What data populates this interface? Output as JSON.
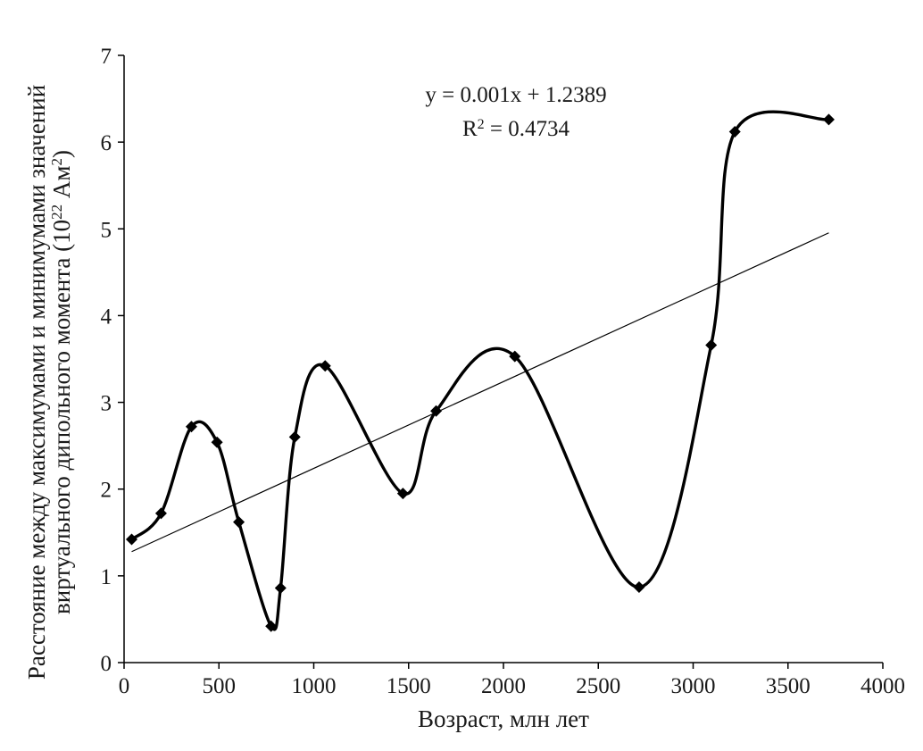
{
  "chart_data": {
    "type": "line",
    "title": "",
    "xlabel": "Возраст, млн лет",
    "ylabel": {
      "line1": "Расстояние между максимумами и минимумами значений",
      "line2_main": "виртуального дипольного момента (10",
      "line2_exp1": "22",
      "line2_mid": " Ам",
      "line2_exp2": "2",
      "line2_end": ")"
    },
    "xlim": [
      0,
      4000
    ],
    "ylim": [
      0,
      7
    ],
    "x_ticks": [
      0,
      500,
      1000,
      1500,
      2000,
      2500,
      3000,
      3500,
      4000
    ],
    "y_ticks": [
      0,
      1,
      2,
      3,
      4,
      5,
      6,
      7
    ],
    "grid": false,
    "legend": "none",
    "series": [
      {
        "kind": "smoothed-line-with-markers",
        "marker": "diamond",
        "color": "#000000",
        "x": [
          40,
          195,
          355,
          490,
          605,
          775,
          825,
          900,
          1060,
          1470,
          1645,
          2060,
          2715,
          3095,
          3220,
          3715
        ],
        "y": [
          1.42,
          1.72,
          2.72,
          2.54,
          1.62,
          0.42,
          0.86,
          2.6,
          3.42,
          1.95,
          2.9,
          3.53,
          0.87,
          3.66,
          6.12,
          6.26
        ]
      }
    ],
    "trendline": {
      "kind": "linear",
      "color": "#000000",
      "x": [
        40,
        3715
      ],
      "y": [
        1.2789,
        4.9539
      ],
      "equation": "y = 0.001x + 1.2389",
      "r2_prefix": "R",
      "r2_exp": "2",
      "r2_value": " = 0.4734"
    }
  }
}
